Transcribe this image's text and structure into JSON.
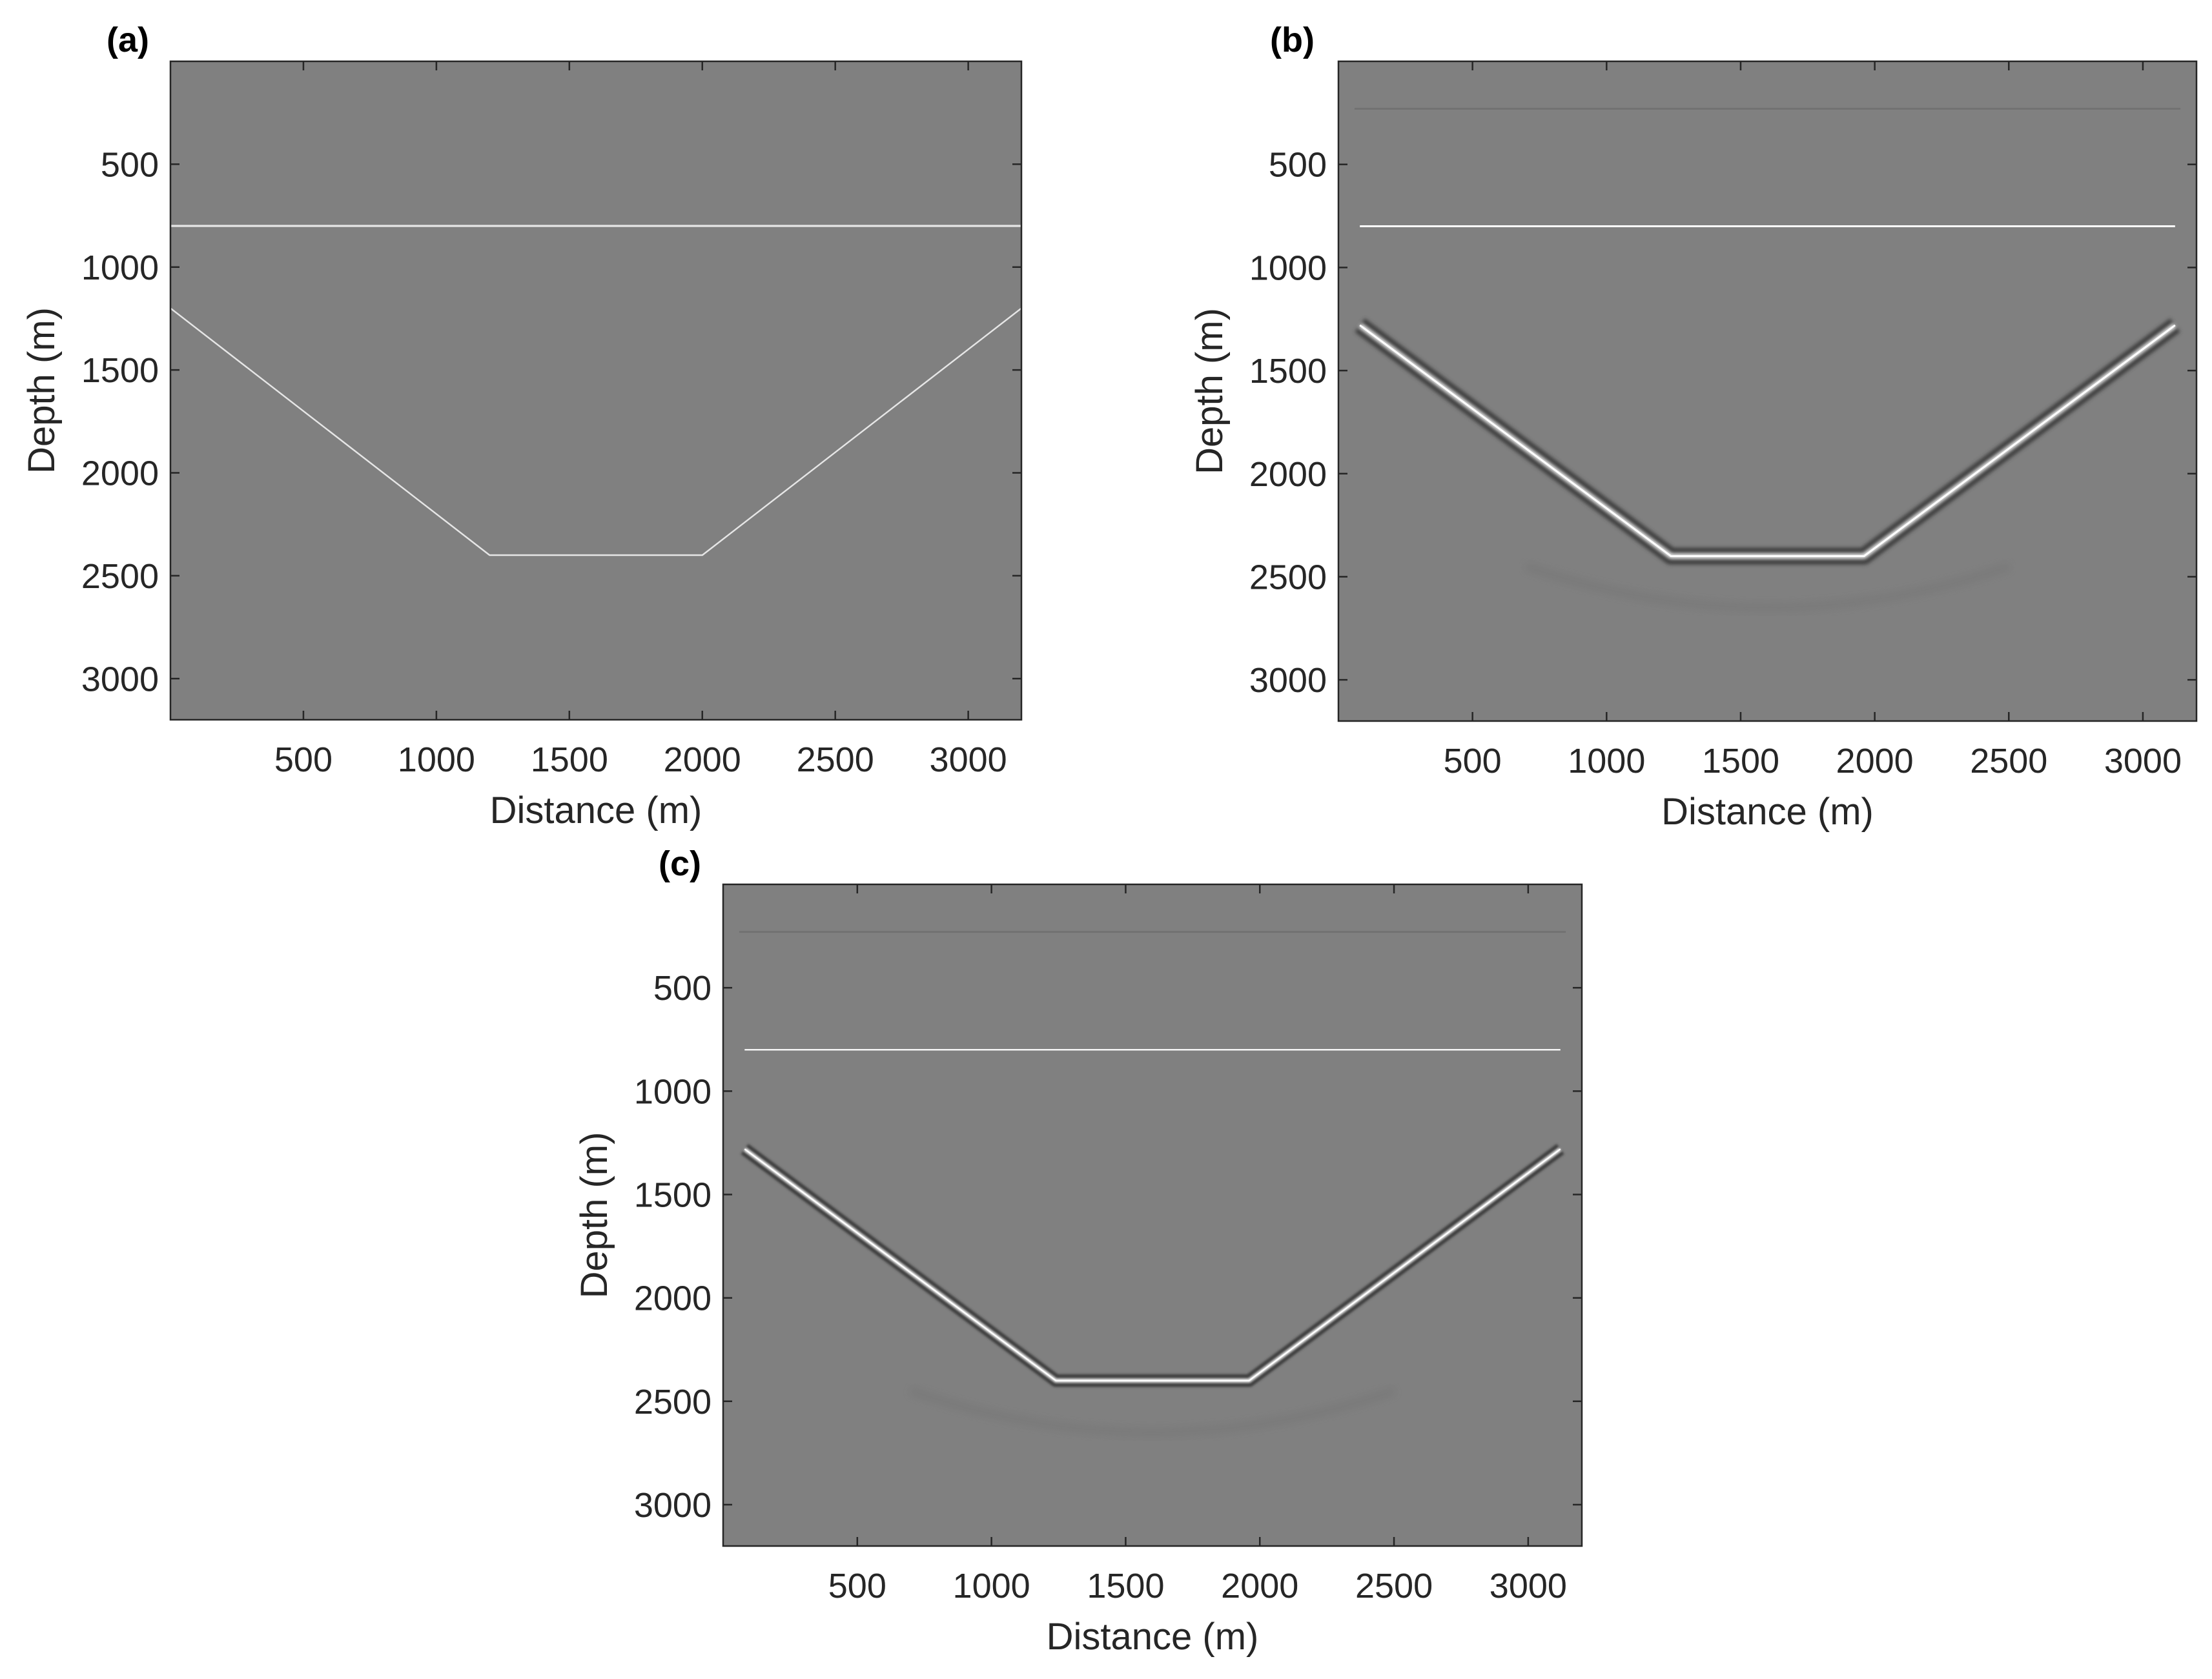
{
  "chart_data": [
    {
      "type": "heatmap",
      "panel_label": "(a)",
      "xlabel": "Distance (m)",
      "ylabel": "Depth (m)",
      "xlim": [
        0,
        3200
      ],
      "ylim": [
        3200,
        0
      ],
      "y_reversed": true,
      "xticks": [
        500,
        1000,
        1500,
        2000,
        2500,
        3000
      ],
      "yticks": [
        500,
        1000,
        1500,
        2000,
        2500,
        3000
      ],
      "colormap": "gray",
      "background_color": "#808080",
      "grid": false,
      "style": "sharp",
      "reflectors": [
        {
          "name": "horizontal",
          "points": [
            [
              0,
              800
            ],
            [
              3200,
              800
            ]
          ]
        },
        {
          "name": "trapezoid",
          "points": [
            [
              0,
              1200
            ],
            [
              1200,
              2400
            ],
            [
              2000,
              2400
            ],
            [
              3200,
              1200
            ]
          ]
        }
      ]
    },
    {
      "type": "heatmap",
      "panel_label": "(b)",
      "xlabel": "Distance (m)",
      "ylabel": "Depth (m)",
      "xlim": [
        0,
        3200
      ],
      "ylim": [
        3200,
        0
      ],
      "y_reversed": true,
      "xticks": [
        500,
        1000,
        1500,
        2000,
        2500,
        3000
      ],
      "yticks": [
        500,
        1000,
        1500,
        2000,
        2500,
        3000
      ],
      "colormap": "gray",
      "background_color": "#808080",
      "grid": false,
      "style": "migrated-smooth",
      "reflectors": [
        {
          "name": "horizontal",
          "points": [
            [
              80,
              800
            ],
            [
              3120,
              800
            ]
          ]
        },
        {
          "name": "trapezoid",
          "points": [
            [
              80,
              1280
            ],
            [
              1240,
              2400
            ],
            [
              1960,
              2400
            ],
            [
              3120,
              1280
            ]
          ]
        }
      ]
    },
    {
      "type": "heatmap",
      "panel_label": "(c)",
      "xlabel": "Distance (m)",
      "ylabel": "Depth (m)",
      "xlim": [
        0,
        3200
      ],
      "ylim": [
        3200,
        0
      ],
      "y_reversed": true,
      "xticks": [
        500,
        1000,
        1500,
        2000,
        2500,
        3000
      ],
      "yticks": [
        500,
        1000,
        1500,
        2000,
        2500,
        3000
      ],
      "colormap": "gray",
      "background_color": "#808080",
      "grid": false,
      "style": "migrated-sharp",
      "reflectors": [
        {
          "name": "horizontal",
          "points": [
            [
              80,
              800
            ],
            [
              3120,
              800
            ]
          ]
        },
        {
          "name": "trapezoid",
          "points": [
            [
              80,
              1280
            ],
            [
              1240,
              2400
            ],
            [
              1960,
              2400
            ],
            [
              3120,
              1280
            ]
          ]
        }
      ]
    }
  ]
}
